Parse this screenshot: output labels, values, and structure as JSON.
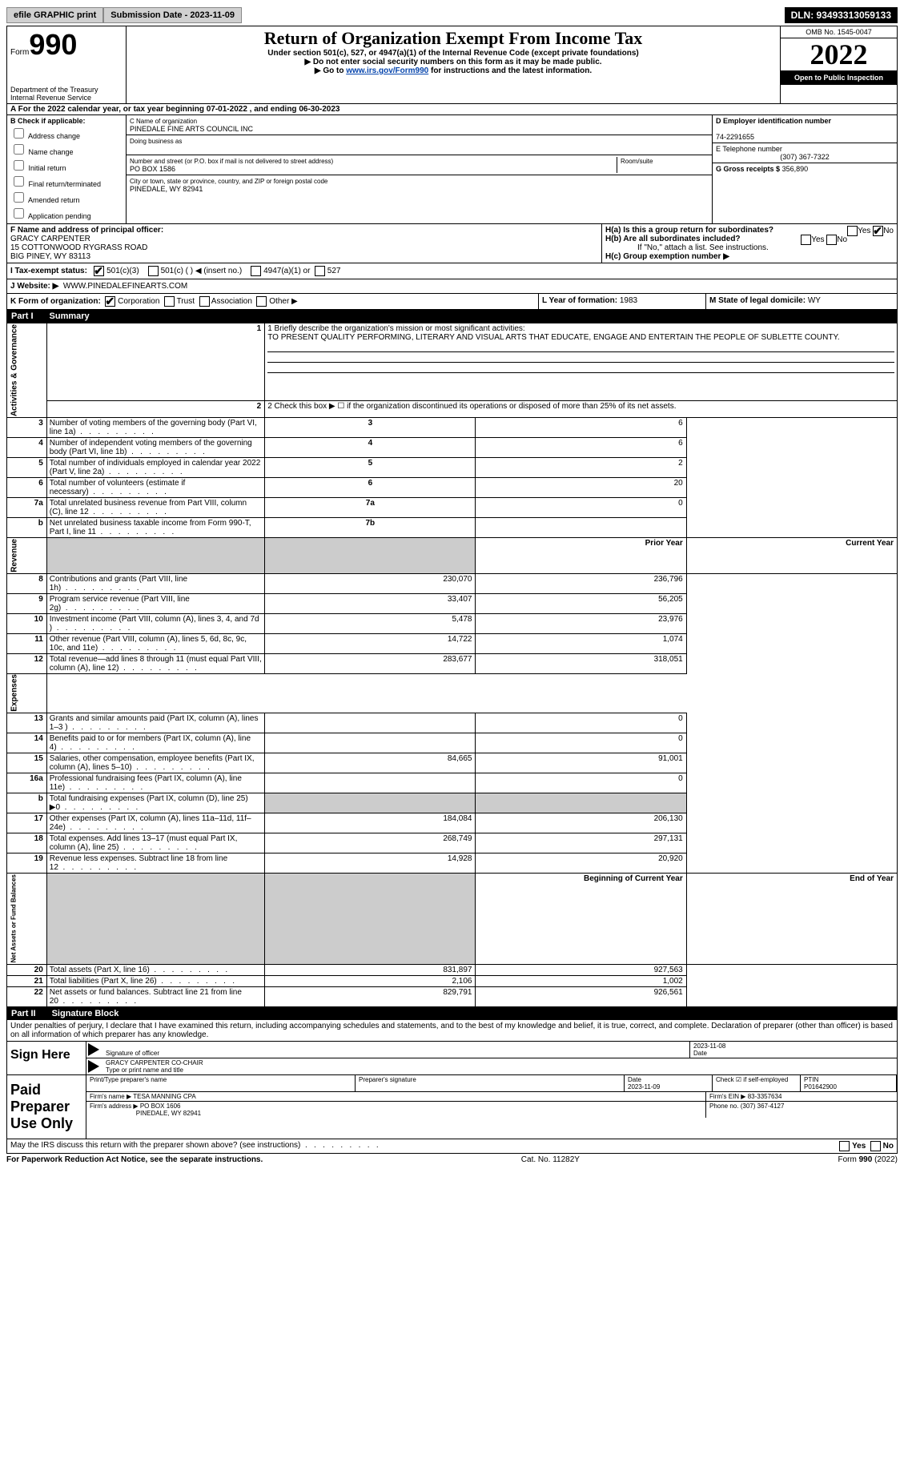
{
  "topbar": {
    "efile": "efile GRAPHIC print",
    "submission": "Submission Date - 2023-11-09",
    "dln": "DLN: 93493313059133"
  },
  "header": {
    "form_label": "Form",
    "form_num": "990",
    "dept": "Department of the Treasury Internal Revenue Service",
    "title": "Return of Organization Exempt From Income Tax",
    "sub1": "Under section 501(c), 527, or 4947(a)(1) of the Internal Revenue Code (except private foundations)",
    "sub2": "▶ Do not enter social security numbers on this form as it may be made public.",
    "sub3_pre": "▶ Go to ",
    "sub3_link": "www.irs.gov/Form990",
    "sub3_post": " for instructions and the latest information.",
    "omb": "OMB No. 1545-0047",
    "year": "2022",
    "open": "Open to Public Inspection"
  },
  "line_a": "A For the 2022 calendar year, or tax year beginning 07-01-2022   , and ending 06-30-2023",
  "section_b": {
    "label": "B Check if applicable:",
    "items": [
      "Address change",
      "Name change",
      "Initial return",
      "Final return/terminated",
      "Amended return",
      "Application pending"
    ]
  },
  "section_c": {
    "name_label": "C Name of organization",
    "name": "PINEDALE FINE ARTS COUNCIL INC",
    "dba_label": "Doing business as",
    "dba": "",
    "street_label": "Number and street (or P.O. box if mail is not delivered to street address)",
    "room_label": "Room/suite",
    "street": "PO BOX 1586",
    "city_label": "City or town, state or province, country, and ZIP or foreign postal code",
    "city": "PINEDALE, WY  82941"
  },
  "section_d": {
    "ein_label": "D Employer identification number",
    "ein": "74-2291655",
    "phone_label": "E Telephone number",
    "phone": "(307) 367-7322",
    "gross_label": "G Gross receipts $",
    "gross": "356,890"
  },
  "section_f": {
    "label": "F Name and address of principal officer:",
    "name": "GRACY CARPENTER",
    "addr1": "15 COTTONWOOD RYGRASS ROAD",
    "addr2": "BIG PINEY, WY  83113"
  },
  "section_h": {
    "a": "H(a)  Is this a group return for subordinates?",
    "b": "H(b)  Are all subordinates included?",
    "b_note": "If \"No,\" attach a list. See instructions.",
    "c": "H(c)  Group exemption number ▶",
    "yes": "Yes",
    "no": "No"
  },
  "row_i": {
    "label": "I   Tax-exempt status:",
    "opts": [
      "501(c)(3)",
      "501(c) (  ) ◀ (insert no.)",
      "4947(a)(1) or",
      "527"
    ]
  },
  "row_j": {
    "label": "J   Website: ▶",
    "val": "WWW.PINEDALEFINEARTS.COM"
  },
  "row_k": {
    "label": "K Form of organization:",
    "opts": [
      "Corporation",
      "Trust",
      "Association",
      "Other ▶"
    ],
    "l_label": "L Year of formation:",
    "l_val": "1983",
    "m_label": "M State of legal domicile:",
    "m_val": "WY"
  },
  "part1": {
    "header": "Part I",
    "title": "Summary",
    "line1_label": "1  Briefly describe the organization's mission or most significant activities:",
    "line1_text": "TO PRESENT QUALITY PERFORMING, LITERARY AND VISUAL ARTS THAT EDUCATE, ENGAGE AND ENTERTAIN THE PEOPLE OF SUBLETTE COUNTY.",
    "line2": "2   Check this box ▶ ☐  if the organization discontinued its operations or disposed of more than 25% of its net assets.",
    "vlabels": {
      "ag": "Activities & Governance",
      "rev": "Revenue",
      "exp": "Expenses",
      "na": "Net Assets or Fund Balances"
    },
    "col_prior": "Prior Year",
    "col_current": "Current Year",
    "col_boy": "Beginning of Current Year",
    "col_eoy": "End of Year",
    "rows_gov": [
      {
        "n": "3",
        "d": "Number of voting members of the governing body (Part VI, line 1a)",
        "box": "3",
        "v": "6"
      },
      {
        "n": "4",
        "d": "Number of independent voting members of the governing body (Part VI, line 1b)",
        "box": "4",
        "v": "6"
      },
      {
        "n": "5",
        "d": "Total number of individuals employed in calendar year 2022 (Part V, line 2a)",
        "box": "5",
        "v": "2"
      },
      {
        "n": "6",
        "d": "Total number of volunteers (estimate if necessary)",
        "box": "6",
        "v": "20"
      },
      {
        "n": "7a",
        "d": "Total unrelated business revenue from Part VIII, column (C), line 12",
        "box": "7a",
        "v": "0"
      },
      {
        "n": "b",
        "d": "Net unrelated business taxable income from Form 990-T, Part I, line 11",
        "box": "7b",
        "v": ""
      }
    ],
    "rows_rev": [
      {
        "n": "8",
        "d": "Contributions and grants (Part VIII, line 1h)",
        "p": "230,070",
        "c": "236,796"
      },
      {
        "n": "9",
        "d": "Program service revenue (Part VIII, line 2g)",
        "p": "33,407",
        "c": "56,205"
      },
      {
        "n": "10",
        "d": "Investment income (Part VIII, column (A), lines 3, 4, and 7d )",
        "p": "5,478",
        "c": "23,976"
      },
      {
        "n": "11",
        "d": "Other revenue (Part VIII, column (A), lines 5, 6d, 8c, 9c, 10c, and 11e)",
        "p": "14,722",
        "c": "1,074"
      },
      {
        "n": "12",
        "d": "Total revenue—add lines 8 through 11 (must equal Part VIII, column (A), line 12)",
        "p": "283,677",
        "c": "318,051"
      }
    ],
    "rows_exp": [
      {
        "n": "13",
        "d": "Grants and similar amounts paid (Part IX, column (A), lines 1–3 )",
        "p": "",
        "c": "0"
      },
      {
        "n": "14",
        "d": "Benefits paid to or for members (Part IX, column (A), line 4)",
        "p": "",
        "c": "0"
      },
      {
        "n": "15",
        "d": "Salaries, other compensation, employee benefits (Part IX, column (A), lines 5–10)",
        "p": "84,665",
        "c": "91,001"
      },
      {
        "n": "16a",
        "d": "Professional fundraising fees (Part IX, column (A), line 11e)",
        "p": "",
        "c": "0"
      },
      {
        "n": "b",
        "d": "Total fundraising expenses (Part IX, column (D), line 25) ▶0",
        "p": "GREY",
        "c": "GREY"
      },
      {
        "n": "17",
        "d": "Other expenses (Part IX, column (A), lines 11a–11d, 11f–24e)",
        "p": "184,084",
        "c": "206,130"
      },
      {
        "n": "18",
        "d": "Total expenses. Add lines 13–17 (must equal Part IX, column (A), line 25)",
        "p": "268,749",
        "c": "297,131"
      },
      {
        "n": "19",
        "d": "Revenue less expenses. Subtract line 18 from line 12",
        "p": "14,928",
        "c": "20,920"
      }
    ],
    "rows_na": [
      {
        "n": "20",
        "d": "Total assets (Part X, line 16)",
        "p": "831,897",
        "c": "927,563"
      },
      {
        "n": "21",
        "d": "Total liabilities (Part X, line 26)",
        "p": "2,106",
        "c": "1,002"
      },
      {
        "n": "22",
        "d": "Net assets or fund balances. Subtract line 21 from line 20",
        "p": "829,791",
        "c": "926,561"
      }
    ]
  },
  "part2": {
    "header": "Part II",
    "title": "Signature Block",
    "declaration": "Under penalties of perjury, I declare that I have examined this return, including accompanying schedules and statements, and to the best of my knowledge and belief, it is true, correct, and complete. Declaration of preparer (other than officer) is based on all information of which preparer has any knowledge.",
    "sign_here": "Sign Here",
    "sig_officer": "Signature of officer",
    "sig_date_label": "Date",
    "sig_date": "2023-11-08",
    "officer_name": "GRACY CARPENTER  CO-CHAIR",
    "officer_label": "Type or print name and title",
    "paid": "Paid Preparer Use Only",
    "prep_name_label": "Print/Type preparer's name",
    "prep_sig_label": "Preparer's signature",
    "prep_date_label": "Date",
    "prep_date": "2023-11-09",
    "self_emp": "Check ☑ if self-employed",
    "ptin_label": "PTIN",
    "ptin": "P01642900",
    "firm_name_label": "Firm's name    ▶",
    "firm_name": "TESA MANNING CPA",
    "firm_ein_label": "Firm's EIN ▶",
    "firm_ein": "83-3357634",
    "firm_addr_label": "Firm's address ▶",
    "firm_addr1": "PO BOX 1606",
    "firm_addr2": "PINEDALE, WY  82941",
    "firm_phone_label": "Phone no.",
    "firm_phone": "(307) 367-4127",
    "irs_q": "May the IRS discuss this return with the preparer shown above? (see instructions)",
    "yes": "Yes",
    "no": "No"
  },
  "footer": {
    "pra": "For Paperwork Reduction Act Notice, see the separate instructions.",
    "cat": "Cat. No. 11282Y",
    "form": "Form 990 (2022)"
  }
}
